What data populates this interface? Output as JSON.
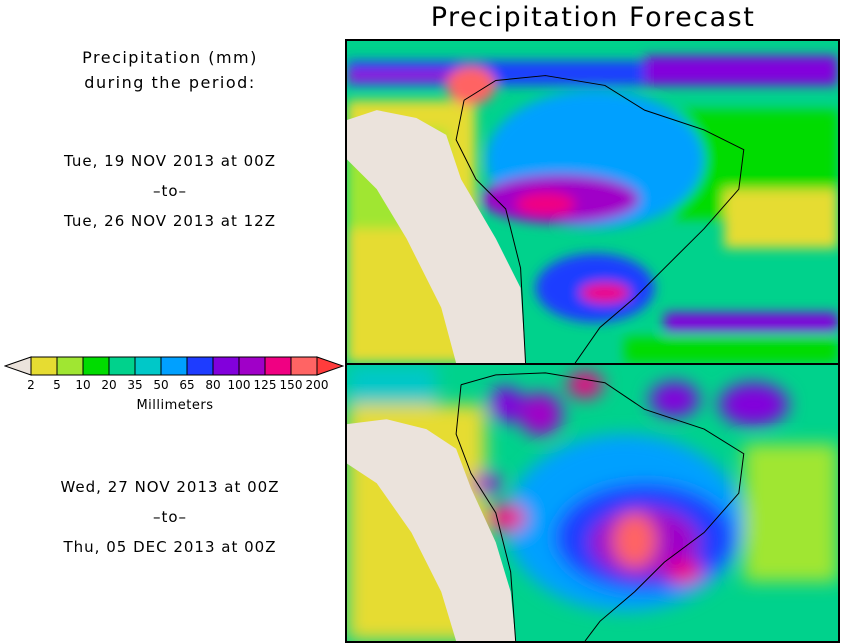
{
  "title": "Precipitation Forecast",
  "legend": {
    "heading_line1": "Precipitation (mm)",
    "heading_line2": "during the period:",
    "units": "Millimeters",
    "ticks": [
      "2",
      "5",
      "10",
      "20",
      "35",
      "50",
      "65",
      "80",
      "100",
      "125",
      "150",
      "200"
    ],
    "under_color": "#ebe3dc",
    "over_color": "#ff3c3c",
    "colors": [
      "#e6dc32",
      "#a0e632",
      "#00dc00",
      "#00d28c",
      "#00c8c8",
      "#00a0ff",
      "#1e3cff",
      "#8200dc",
      "#a000c8",
      "#f00082",
      "#ff6464"
    ]
  },
  "periods": [
    {
      "start": "Tue, 19 NOV 2013 at 00Z",
      "separator": "–to–",
      "end": "Tue, 26 NOV 2013 at 12Z"
    },
    {
      "start": "Wed, 27 NOV 2013 at 00Z",
      "separator": "–to–",
      "end": "Thu, 05 DEC 2013 at 00Z"
    }
  ]
}
